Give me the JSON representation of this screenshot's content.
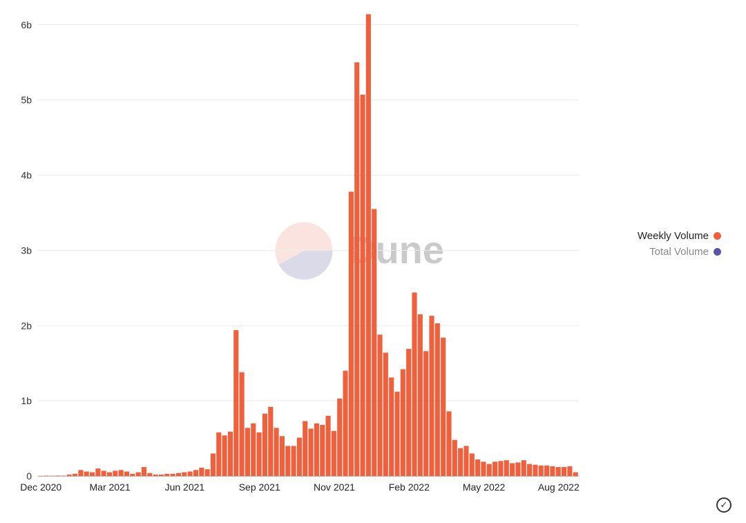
{
  "chart_data": {
    "type": "bar",
    "watermark": "Dune",
    "y_unit_suffix": "b",
    "ylim": [
      0,
      6.2
    ],
    "y_ticks": [
      {
        "value": 0,
        "label": "0"
      },
      {
        "value": 1,
        "label": "1b"
      },
      {
        "value": 2,
        "label": "2b"
      },
      {
        "value": 3,
        "label": "3b"
      },
      {
        "value": 4,
        "label": "4b"
      },
      {
        "value": 5,
        "label": "5b"
      },
      {
        "value": 6,
        "label": "6b"
      }
    ],
    "x_ticks": [
      {
        "bar_index": 0,
        "label": "Dec 2020"
      },
      {
        "bar_index": 12,
        "label": "Mar 2021"
      },
      {
        "bar_index": 25,
        "label": "Jun 2021"
      },
      {
        "bar_index": 38,
        "label": "Sep 2021"
      },
      {
        "bar_index": 51,
        "label": "Nov 2021"
      },
      {
        "bar_index": 64,
        "label": "Feb 2022"
      },
      {
        "bar_index": 77,
        "label": "May 2022"
      },
      {
        "bar_index": 90,
        "label": "Aug 2022"
      }
    ],
    "grid": true,
    "series": [
      {
        "name": "Weekly Volume",
        "color": "#f0603c",
        "values": [
          0.003,
          0.005,
          0.004,
          0.006,
          0.005,
          0.02,
          0.03,
          0.08,
          0.06,
          0.05,
          0.1,
          0.07,
          0.05,
          0.07,
          0.08,
          0.06,
          0.03,
          0.05,
          0.12,
          0.04,
          0.02,
          0.02,
          0.03,
          0.03,
          0.04,
          0.05,
          0.06,
          0.08,
          0.11,
          0.09,
          0.3,
          0.58,
          0.54,
          0.59,
          1.94,
          1.38,
          0.64,
          0.7,
          0.58,
          0.83,
          0.92,
          0.64,
          0.53,
          0.4,
          0.4,
          0.51,
          0.73,
          0.63,
          0.7,
          0.68,
          0.8,
          0.6,
          1.03,
          1.4,
          3.78,
          5.5,
          5.07,
          6.14,
          3.55,
          1.88,
          1.64,
          1.31,
          1.12,
          1.42,
          1.69,
          2.44,
          2.15,
          1.66,
          2.13,
          2.03,
          1.84,
          0.86,
          0.48,
          0.37,
          0.4,
          0.3,
          0.22,
          0.19,
          0.16,
          0.19,
          0.2,
          0.21,
          0.17,
          0.18,
          0.21,
          0.16,
          0.15,
          0.14,
          0.14,
          0.13,
          0.12,
          0.12,
          0.13,
          0.05
        ]
      },
      {
        "name": "Total Volume",
        "color": "#5a55a8",
        "values": []
      }
    ],
    "legend_position": "right"
  },
  "legend": {
    "weekly_label": "Weekly Volume",
    "total_label": "Total Volume"
  },
  "controls": {
    "check_icon": "check-circle-icon"
  }
}
